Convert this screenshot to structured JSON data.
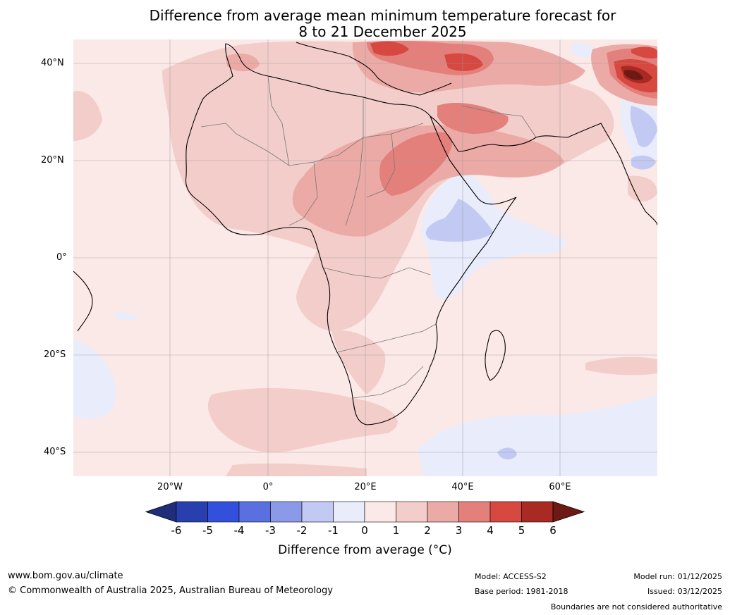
{
  "title": {
    "line1": "Difference from average mean minimum temperature forecast for",
    "line2": "8 to 21 December 2025"
  },
  "axes": {
    "latitudes": [
      "40°N",
      "20°N",
      "0°",
      "20°S",
      "40°S"
    ],
    "longitudes": [
      "20°W",
      "0°",
      "20°E",
      "40°E",
      "60°E"
    ]
  },
  "colorbar": {
    "label": "Difference from average ($^\\circ$C)",
    "label_display": "Difference from average (°C)",
    "ticks": [
      "-6",
      "-5",
      "-4",
      "-3",
      "-2",
      "-1",
      "0",
      "1",
      "2",
      "3",
      "4",
      "5",
      "6"
    ],
    "colors": [
      "#1f2d7a",
      "#2a3fae",
      "#3350dd",
      "#5a70e0",
      "#8a9ae8",
      "#c2c9f3",
      "#e9ecfb",
      "#fbe9e8",
      "#f3cdca",
      "#ebaaa6",
      "#e3807b",
      "#d64840",
      "#a82a22",
      "#6e1a14"
    ]
  },
  "map_colors": {
    "background": "#fbe9e8",
    "cool_light": "#e9ecfb",
    "cool_mid": "#c2c9f3",
    "warm_1": "#f3cdca",
    "warm_2": "#ebaaa6",
    "warm_3": "#e3807b",
    "warm_4": "#d64840",
    "warm_5": "#a82a22",
    "warm_6": "#6e1a14"
  },
  "footer": {
    "website": "www.bom.gov.au/climate",
    "copyright": "© Commonwealth of Australia 2025, Australian Bureau of Meteorology",
    "model": "Model: ACCESS-S2",
    "base_period": "Base period: 1981-2018",
    "model_run": "Model run: 01/12/2025",
    "issued": "Issued: 03/12/2025",
    "disclaimer": "Boundaries are not considered authoritative"
  }
}
